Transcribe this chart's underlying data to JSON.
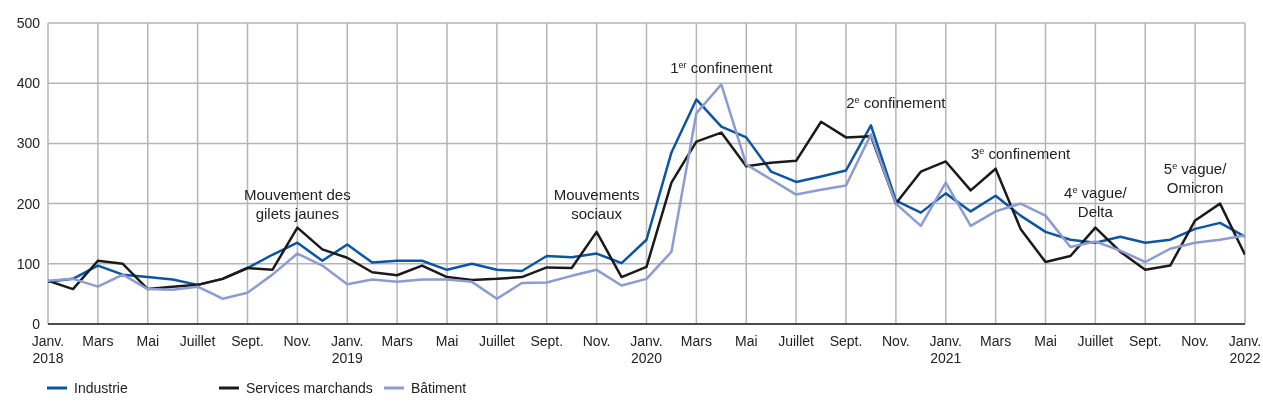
{
  "chart_data": {
    "type": "line",
    "x": [
      "2018-01",
      "2018-02",
      "2018-03",
      "2018-04",
      "2018-05",
      "2018-06",
      "2018-07",
      "2018-08",
      "2018-09",
      "2018-10",
      "2018-11",
      "2018-12",
      "2019-01",
      "2019-02",
      "2019-03",
      "2019-04",
      "2019-05",
      "2019-06",
      "2019-07",
      "2019-08",
      "2019-09",
      "2019-10",
      "2019-11",
      "2019-12",
      "2020-01",
      "2020-02",
      "2020-03",
      "2020-04",
      "2020-05",
      "2020-06",
      "2020-07",
      "2020-08",
      "2020-09",
      "2020-10",
      "2020-11",
      "2020-12",
      "2021-01",
      "2021-02",
      "2021-03",
      "2021-04",
      "2021-05",
      "2021-06",
      "2021-07",
      "2021-08",
      "2021-09",
      "2021-10",
      "2021-11",
      "2021-12",
      "2022-01"
    ],
    "series": [
      {
        "name": "Industrie",
        "color": "#0b55a3",
        "values": [
          70,
          75,
          97,
          82,
          78,
          74,
          65,
          75,
          93,
          115,
          135,
          105,
          132,
          102,
          105,
          105,
          90,
          100,
          90,
          88,
          113,
          111,
          117,
          101,
          140,
          285,
          373,
          328,
          310,
          253,
          236,
          245,
          255,
          330,
          205,
          185,
          217,
          187,
          213,
          180,
          153,
          140,
          135,
          145,
          135,
          140,
          158,
          168,
          145
        ]
      },
      {
        "name": "Services marchands",
        "color": "#1a1a1a",
        "values": [
          72,
          58,
          105,
          100,
          58,
          62,
          65,
          75,
          93,
          90,
          160,
          124,
          110,
          86,
          81,
          97,
          78,
          73,
          75,
          78,
          94,
          93,
          153,
          78,
          95,
          235,
          303,
          318,
          262,
          268,
          271,
          336,
          310,
          312,
          200,
          253,
          270,
          222,
          258,
          158,
          103,
          113,
          160,
          120,
          90,
          97,
          172,
          200,
          115
        ]
      },
      {
        "name": "Bâtiment",
        "color": "#8c9bd0",
        "values": [
          72,
          75,
          62,
          82,
          58,
          57,
          62,
          42,
          52,
          82,
          117,
          97,
          66,
          74,
          70,
          74,
          74,
          70,
          42,
          68,
          69,
          80,
          90,
          64,
          75,
          120,
          350,
          398,
          265,
          240,
          215,
          223,
          230,
          315,
          200,
          163,
          235,
          163,
          187,
          200,
          180,
          128,
          137,
          122,
          103,
          125,
          135,
          140,
          147
        ]
      }
    ],
    "xlim": [
      "2018-01",
      "2022-01"
    ],
    "xticks": [
      {
        "value": "2018-01",
        "label": "Janv.\n2018"
      },
      {
        "value": "2018-03",
        "label": "Mars"
      },
      {
        "value": "2018-05",
        "label": "Mai"
      },
      {
        "value": "2018-07",
        "label": "Juillet"
      },
      {
        "value": "2018-09",
        "label": "Sept."
      },
      {
        "value": "2018-11",
        "label": "Nov."
      },
      {
        "value": "2019-01",
        "label": "Janv.\n2019"
      },
      {
        "value": "2019-03",
        "label": "Mars"
      },
      {
        "value": "2019-05",
        "label": "Mai"
      },
      {
        "value": "2019-07",
        "label": "Juillet"
      },
      {
        "value": "2019-09",
        "label": "Sept."
      },
      {
        "value": "2019-11",
        "label": "Nov."
      },
      {
        "value": "2020-01",
        "label": "Janv.\n2020"
      },
      {
        "value": "2020-03",
        "label": "Mars"
      },
      {
        "value": "2020-05",
        "label": "Mai"
      },
      {
        "value": "2020-07",
        "label": "Juillet"
      },
      {
        "value": "2020-09",
        "label": "Sept."
      },
      {
        "value": "2020-11",
        "label": "Nov."
      },
      {
        "value": "2021-01",
        "label": "Janv.\n2021"
      },
      {
        "value": "2021-03",
        "label": "Mars"
      },
      {
        "value": "2021-05",
        "label": "Mai"
      },
      {
        "value": "2021-07",
        "label": "Juillet"
      },
      {
        "value": "2021-09",
        "label": "Sept."
      },
      {
        "value": "2021-11",
        "label": "Nov."
      },
      {
        "value": "2022-01",
        "label": "Janv.\n2022"
      }
    ],
    "ylim": [
      0,
      500
    ],
    "yticks": [
      0,
      100,
      200,
      300,
      400,
      500
    ],
    "grid": true,
    "legend": "bottom left",
    "marker": "none",
    "line_style": "solid",
    "annotations": [
      "Mouvement des\ngilets jaunes",
      "Mouvements\nsociaux",
      "1$^{er}$ confinement",
      "2$^{e}$ confinement",
      "3$^{e}$ confinement",
      "4$^{e}$ vague/\nDelta",
      "5$^{e}$ vague/\nOmicron"
    ]
  }
}
